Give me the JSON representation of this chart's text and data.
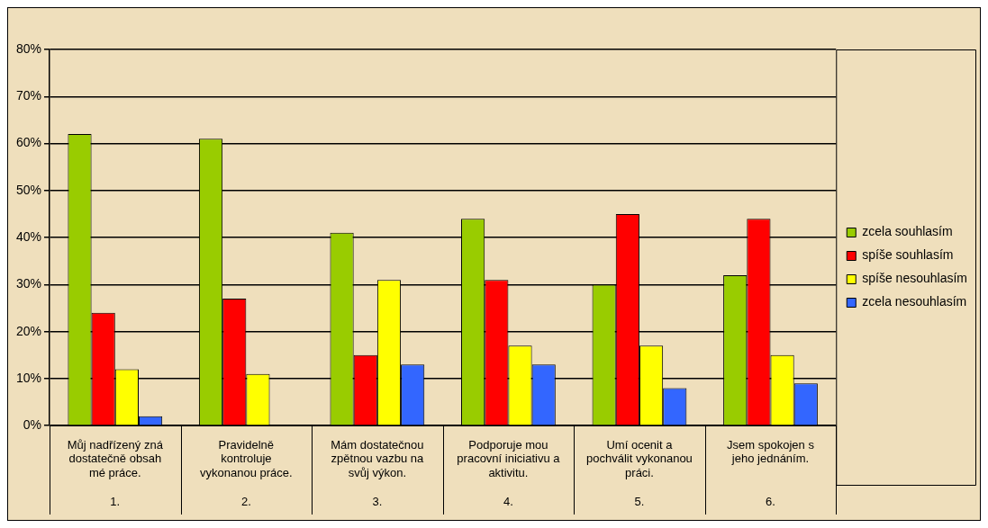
{
  "chart_data": {
    "type": "bar",
    "categories": [
      "Můj nadřízený zná dostatečně obsah mé práce.",
      "Pravidelně kontroluje vykonanou práce.",
      "Mám dostatečnou zpětnou vazbu na svůj výkon.",
      "Podporuje mou pracovní iniciativu a aktivitu.",
      "Umí ocenit a pochválit vykonanou práci.",
      "Jsem spokojen s jeho jednáním."
    ],
    "series": [
      {
        "name": "zcela souhlasím",
        "color": "#99cc00",
        "values": [
          62,
          61,
          41,
          44,
          30,
          32
        ]
      },
      {
        "name": "spíše souhlasím",
        "color": "#ff0000",
        "values": [
          24,
          27,
          15,
          31,
          45,
          44
        ]
      },
      {
        "name": "spíše nesouhlasím",
        "color": "#ffff00",
        "values": [
          12,
          11,
          31,
          17,
          17,
          15
        ]
      },
      {
        "name": "zcela nesouhlasím",
        "color": "#3366ff",
        "values": [
          2,
          0,
          13,
          13,
          8,
          9
        ]
      }
    ],
    "annotations": [
      "1.",
      "2.",
      "3.",
      "4.",
      "5.",
      "6."
    ],
    "ylim": [
      0,
      80
    ],
    "yticks": [
      {
        "value": 0,
        "label": "0%"
      },
      {
        "value": 10,
        "label": "10%"
      },
      {
        "value": 20,
        "label": "20%"
      },
      {
        "value": 30,
        "label": "30%"
      },
      {
        "value": 40,
        "label": "40%"
      },
      {
        "value": 50,
        "label": "50%"
      },
      {
        "value": 60,
        "label": "60%"
      },
      {
        "value": 70,
        "label": "70%"
      },
      {
        "value": 80,
        "label": "80%"
      }
    ],
    "grid": "y",
    "legend": "right"
  }
}
